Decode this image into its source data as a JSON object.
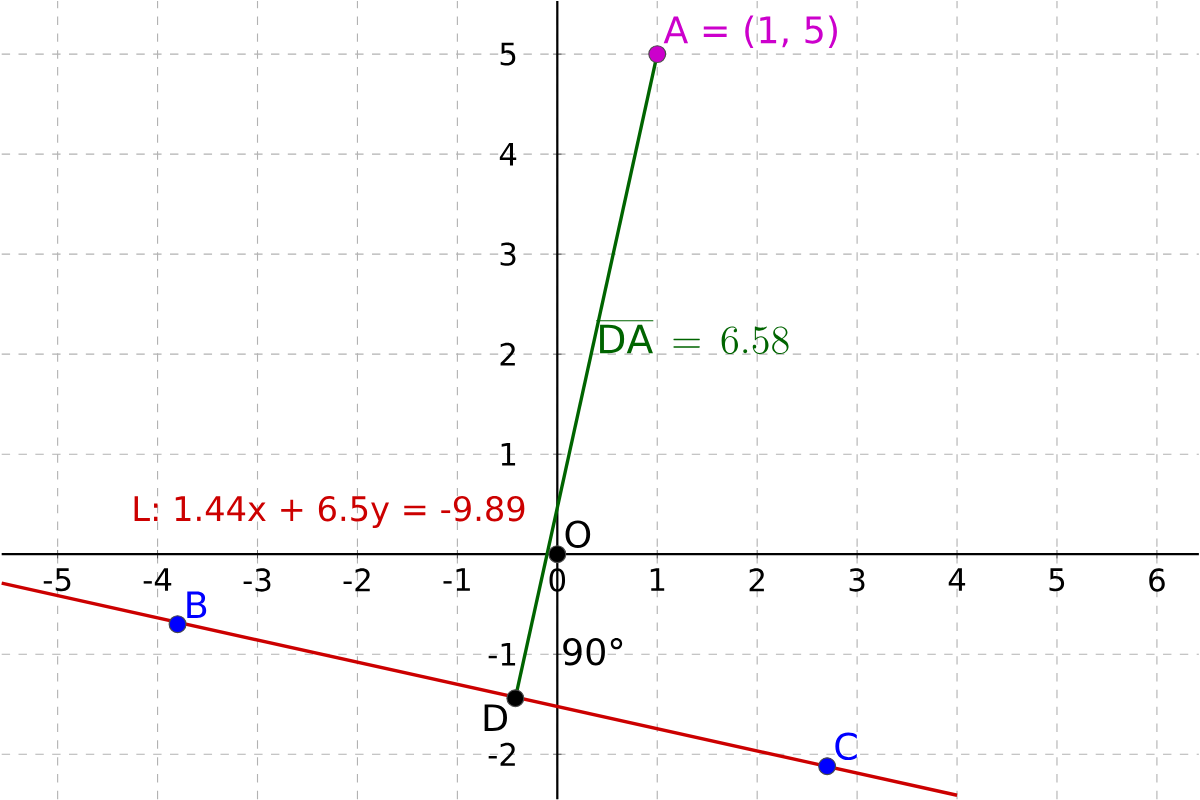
{
  "chart_data": {
    "type": "scatter",
    "xlim": [
      -5.56,
      6.42
    ],
    "ylim": [
      -2.45,
      5.53
    ],
    "xticks": [
      -5,
      -4,
      -3,
      -2,
      -1,
      0,
      1,
      2,
      3,
      4,
      5,
      6
    ],
    "yticks": [
      -2,
      -1,
      1,
      2,
      3,
      4,
      5
    ],
    "grid": true,
    "annotations": [
      "\\overline{\\mathrm{DA}} \\,=\\, 6.58",
      "90°"
    ],
    "series": [
      {
        "name": "L: 1.44x + 6.5y = -9.89",
        "type": "line",
        "color": "#cc0000",
        "x": [
          -5.56,
          4.0
        ],
        "values": [
          -0.29,
          -2.41
        ]
      },
      {
        "type": "line",
        "color": "#006400",
        "x": [
          -0.42,
          1
        ],
        "values": [
          -1.44,
          5
        ]
      },
      {
        "name": "A = (1, 5)",
        "color": "#cc00cc",
        "marker": "circle",
        "x": [
          1
        ],
        "values": [
          5
        ]
      },
      {
        "name": "B",
        "color": "#0000ff",
        "marker": "circle",
        "x": [
          -3.8
        ],
        "values": [
          -0.7
        ]
      },
      {
        "name": "C",
        "color": "#0000ff",
        "marker": "circle",
        "x": [
          2.7
        ],
        "values": [
          -2.12
        ]
      },
      {
        "name": "D",
        "color": "#000000",
        "marker": "circle",
        "x": [
          -0.42
        ],
        "values": [
          -1.44
        ]
      },
      {
        "name": "O",
        "color": "#000000",
        "marker": "circle",
        "x": [
          0
        ],
        "values": [
          0
        ]
      }
    ]
  }
}
